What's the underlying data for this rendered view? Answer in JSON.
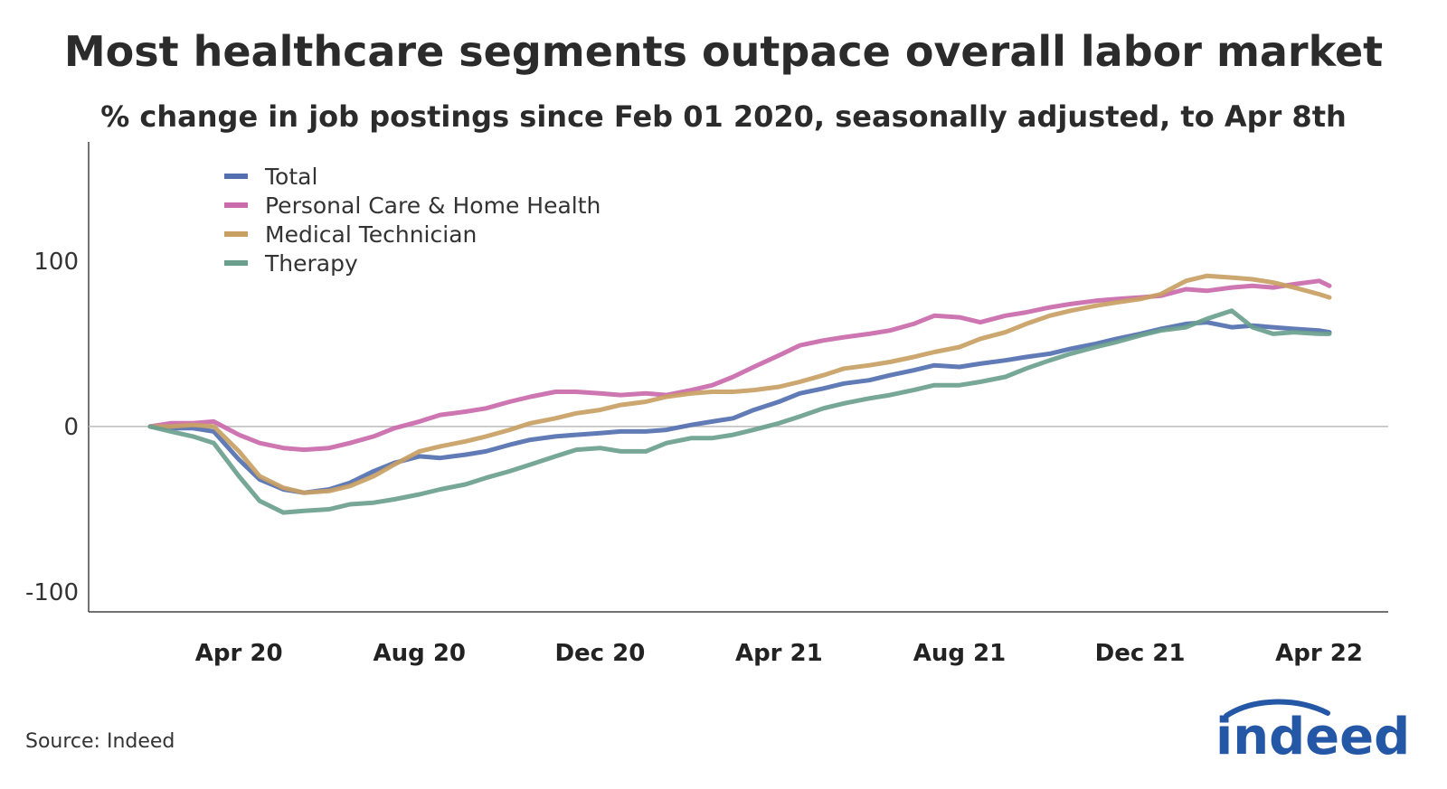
{
  "header": {
    "title": "Most healthcare segments outpace overall labor market",
    "subtitle": "% change in job postings since Feb 01 2020, seasonally adjusted, to Apr 8th"
  },
  "footer": {
    "source": "Source: Indeed",
    "logo_text": "indeed"
  },
  "chart_data": {
    "type": "line",
    "title": "Most healthcare segments outpace overall labor market",
    "subtitle": "% change in job postings since Feb 01 2020, seasonally adjusted, to Apr 8th",
    "xlabel": "",
    "ylabel": "",
    "x_range": [
      "2020-02-01",
      "2022-04-08"
    ],
    "ylim": [
      -112,
      172
    ],
    "y_ticks": [
      -100,
      0,
      100
    ],
    "y_tick_labels": [
      "-100",
      "0",
      "100"
    ],
    "x_ticks": [
      "2020-04-01",
      "2020-08-01",
      "2020-12-01",
      "2021-04-01",
      "2021-08-01",
      "2021-12-01",
      "2022-04-01"
    ],
    "x_tick_labels": [
      "Apr 20",
      "Aug 20",
      "Dec 20",
      "Apr 21",
      "Aug 21",
      "Dec 21",
      "Apr 22"
    ],
    "legend_position": "top-left",
    "zero_line": true,
    "series": [
      {
        "name": "Total",
        "color": "#5470b0",
        "points": [
          [
            "2020-02-01",
            0
          ],
          [
            "2020-02-15",
            -1
          ],
          [
            "2020-03-01",
            -1
          ],
          [
            "2020-03-15",
            -3
          ],
          [
            "2020-04-01",
            -20
          ],
          [
            "2020-04-15",
            -32
          ],
          [
            "2020-05-01",
            -38
          ],
          [
            "2020-05-15",
            -40
          ],
          [
            "2020-06-01",
            -38
          ],
          [
            "2020-06-15",
            -34
          ],
          [
            "2020-07-01",
            -27
          ],
          [
            "2020-07-15",
            -22
          ],
          [
            "2020-08-01",
            -18
          ],
          [
            "2020-08-15",
            -19
          ],
          [
            "2020-09-01",
            -17
          ],
          [
            "2020-09-15",
            -15
          ],
          [
            "2020-10-01",
            -11
          ],
          [
            "2020-10-15",
            -8
          ],
          [
            "2020-11-01",
            -6
          ],
          [
            "2020-11-15",
            -5
          ],
          [
            "2020-12-01",
            -4
          ],
          [
            "2020-12-15",
            -3
          ],
          [
            "2021-01-01",
            -3
          ],
          [
            "2021-01-15",
            -2
          ],
          [
            "2021-02-01",
            1
          ],
          [
            "2021-02-15",
            3
          ],
          [
            "2021-03-01",
            5
          ],
          [
            "2021-03-15",
            10
          ],
          [
            "2021-04-01",
            15
          ],
          [
            "2021-04-15",
            20
          ],
          [
            "2021-05-01",
            23
          ],
          [
            "2021-05-15",
            26
          ],
          [
            "2021-06-01",
            28
          ],
          [
            "2021-06-15",
            31
          ],
          [
            "2021-07-01",
            34
          ],
          [
            "2021-07-15",
            37
          ],
          [
            "2021-08-01",
            36
          ],
          [
            "2021-08-15",
            38
          ],
          [
            "2021-09-01",
            40
          ],
          [
            "2021-09-15",
            42
          ],
          [
            "2021-10-01",
            44
          ],
          [
            "2021-10-15",
            47
          ],
          [
            "2021-11-01",
            50
          ],
          [
            "2021-11-15",
            53
          ],
          [
            "2021-12-01",
            56
          ],
          [
            "2021-12-15",
            59
          ],
          [
            "2022-01-01",
            62
          ],
          [
            "2022-01-15",
            63
          ],
          [
            "2022-02-01",
            60
          ],
          [
            "2022-02-15",
            61
          ],
          [
            "2022-03-01",
            60
          ],
          [
            "2022-03-15",
            59
          ],
          [
            "2022-04-01",
            58
          ],
          [
            "2022-04-08",
            57
          ]
        ]
      },
      {
        "name": "Personal Care & Home Health",
        "color": "#c96aaa",
        "points": [
          [
            "2020-02-01",
            0
          ],
          [
            "2020-02-15",
            2
          ],
          [
            "2020-03-01",
            2
          ],
          [
            "2020-03-15",
            3
          ],
          [
            "2020-04-01",
            -5
          ],
          [
            "2020-04-15",
            -10
          ],
          [
            "2020-05-01",
            -13
          ],
          [
            "2020-05-15",
            -14
          ],
          [
            "2020-06-01",
            -13
          ],
          [
            "2020-06-15",
            -10
          ],
          [
            "2020-07-01",
            -6
          ],
          [
            "2020-07-15",
            -1
          ],
          [
            "2020-08-01",
            3
          ],
          [
            "2020-08-15",
            7
          ],
          [
            "2020-09-01",
            9
          ],
          [
            "2020-09-15",
            11
          ],
          [
            "2020-10-01",
            15
          ],
          [
            "2020-10-15",
            18
          ],
          [
            "2020-11-01",
            21
          ],
          [
            "2020-11-15",
            21
          ],
          [
            "2020-12-01",
            20
          ],
          [
            "2020-12-15",
            19
          ],
          [
            "2021-01-01",
            20
          ],
          [
            "2021-01-15",
            19
          ],
          [
            "2021-02-01",
            22
          ],
          [
            "2021-02-15",
            25
          ],
          [
            "2021-03-01",
            30
          ],
          [
            "2021-03-15",
            36
          ],
          [
            "2021-04-01",
            43
          ],
          [
            "2021-04-15",
            49
          ],
          [
            "2021-05-01",
            52
          ],
          [
            "2021-05-15",
            54
          ],
          [
            "2021-06-01",
            56
          ],
          [
            "2021-06-15",
            58
          ],
          [
            "2021-07-01",
            62
          ],
          [
            "2021-07-15",
            67
          ],
          [
            "2021-08-01",
            66
          ],
          [
            "2021-08-15",
            63
          ],
          [
            "2021-09-01",
            67
          ],
          [
            "2021-09-15",
            69
          ],
          [
            "2021-10-01",
            72
          ],
          [
            "2021-10-15",
            74
          ],
          [
            "2021-11-01",
            76
          ],
          [
            "2021-11-15",
            77
          ],
          [
            "2021-12-01",
            78
          ],
          [
            "2021-12-15",
            79
          ],
          [
            "2022-01-01",
            83
          ],
          [
            "2022-01-15",
            82
          ],
          [
            "2022-02-01",
            84
          ],
          [
            "2022-02-15",
            85
          ],
          [
            "2022-03-01",
            84
          ],
          [
            "2022-03-15",
            86
          ],
          [
            "2022-04-01",
            88
          ],
          [
            "2022-04-08",
            85
          ]
        ]
      },
      {
        "name": "Medical Technician",
        "color": "#c9a064",
        "points": [
          [
            "2020-02-01",
            0
          ],
          [
            "2020-02-15",
            0
          ],
          [
            "2020-03-01",
            1
          ],
          [
            "2020-03-15",
            0
          ],
          [
            "2020-04-01",
            -15
          ],
          [
            "2020-04-15",
            -30
          ],
          [
            "2020-05-01",
            -37
          ],
          [
            "2020-05-15",
            -40
          ],
          [
            "2020-06-01",
            -39
          ],
          [
            "2020-06-15",
            -36
          ],
          [
            "2020-07-01",
            -30
          ],
          [
            "2020-07-15",
            -23
          ],
          [
            "2020-08-01",
            -15
          ],
          [
            "2020-08-15",
            -12
          ],
          [
            "2020-09-01",
            -9
          ],
          [
            "2020-09-15",
            -6
          ],
          [
            "2020-10-01",
            -2
          ],
          [
            "2020-10-15",
            2
          ],
          [
            "2020-11-01",
            5
          ],
          [
            "2020-11-15",
            8
          ],
          [
            "2020-12-01",
            10
          ],
          [
            "2020-12-15",
            13
          ],
          [
            "2021-01-01",
            15
          ],
          [
            "2021-01-15",
            18
          ],
          [
            "2021-02-01",
            20
          ],
          [
            "2021-02-15",
            21
          ],
          [
            "2021-03-01",
            21
          ],
          [
            "2021-03-15",
            22
          ],
          [
            "2021-04-01",
            24
          ],
          [
            "2021-04-15",
            27
          ],
          [
            "2021-05-01",
            31
          ],
          [
            "2021-05-15",
            35
          ],
          [
            "2021-06-01",
            37
          ],
          [
            "2021-06-15",
            39
          ],
          [
            "2021-07-01",
            42
          ],
          [
            "2021-07-15",
            45
          ],
          [
            "2021-08-01",
            48
          ],
          [
            "2021-08-15",
            53
          ],
          [
            "2021-09-01",
            57
          ],
          [
            "2021-09-15",
            62
          ],
          [
            "2021-10-01",
            67
          ],
          [
            "2021-10-15",
            70
          ],
          [
            "2021-11-01",
            73
          ],
          [
            "2021-11-15",
            75
          ],
          [
            "2021-12-01",
            77
          ],
          [
            "2021-12-15",
            80
          ],
          [
            "2022-01-01",
            88
          ],
          [
            "2022-01-15",
            91
          ],
          [
            "2022-02-01",
            90
          ],
          [
            "2022-02-15",
            89
          ],
          [
            "2022-03-01",
            87
          ],
          [
            "2022-03-15",
            84
          ],
          [
            "2022-04-01",
            80
          ],
          [
            "2022-04-08",
            78
          ]
        ]
      },
      {
        "name": "Therapy",
        "color": "#6a9f8e",
        "points": [
          [
            "2020-02-01",
            0
          ],
          [
            "2020-02-15",
            -3
          ],
          [
            "2020-03-01",
            -6
          ],
          [
            "2020-03-15",
            -10
          ],
          [
            "2020-04-01",
            -30
          ],
          [
            "2020-04-15",
            -45
          ],
          [
            "2020-05-01",
            -52
          ],
          [
            "2020-05-15",
            -51
          ],
          [
            "2020-06-01",
            -50
          ],
          [
            "2020-06-15",
            -47
          ],
          [
            "2020-07-01",
            -46
          ],
          [
            "2020-07-15",
            -44
          ],
          [
            "2020-08-01",
            -41
          ],
          [
            "2020-08-15",
            -38
          ],
          [
            "2020-09-01",
            -35
          ],
          [
            "2020-09-15",
            -31
          ],
          [
            "2020-10-01",
            -27
          ],
          [
            "2020-10-15",
            -23
          ],
          [
            "2020-11-01",
            -18
          ],
          [
            "2020-11-15",
            -14
          ],
          [
            "2020-12-01",
            -13
          ],
          [
            "2020-12-15",
            -15
          ],
          [
            "2021-01-01",
            -15
          ],
          [
            "2021-01-15",
            -10
          ],
          [
            "2021-02-01",
            -7
          ],
          [
            "2021-02-15",
            -7
          ],
          [
            "2021-03-01",
            -5
          ],
          [
            "2021-03-15",
            -2
          ],
          [
            "2021-04-01",
            2
          ],
          [
            "2021-04-15",
            6
          ],
          [
            "2021-05-01",
            11
          ],
          [
            "2021-05-15",
            14
          ],
          [
            "2021-06-01",
            17
          ],
          [
            "2021-06-15",
            19
          ],
          [
            "2021-07-01",
            22
          ],
          [
            "2021-07-15",
            25
          ],
          [
            "2021-08-01",
            25
          ],
          [
            "2021-08-15",
            27
          ],
          [
            "2021-09-01",
            30
          ],
          [
            "2021-09-15",
            35
          ],
          [
            "2021-10-01",
            40
          ],
          [
            "2021-10-15",
            44
          ],
          [
            "2021-11-01",
            48
          ],
          [
            "2021-11-15",
            51
          ],
          [
            "2021-12-01",
            55
          ],
          [
            "2021-12-15",
            58
          ],
          [
            "2022-01-01",
            60
          ],
          [
            "2022-01-15",
            65
          ],
          [
            "2022-02-01",
            70
          ],
          [
            "2022-02-15",
            60
          ],
          [
            "2022-03-01",
            56
          ],
          [
            "2022-03-15",
            57
          ],
          [
            "2022-04-01",
            56
          ],
          [
            "2022-04-08",
            56
          ]
        ]
      }
    ]
  }
}
